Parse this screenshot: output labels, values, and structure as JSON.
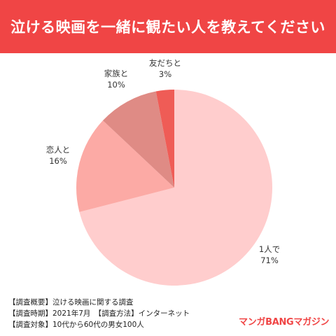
{
  "header": {
    "title": "泣ける映画を一緒に観たい人を教えてください",
    "background": "#f04545"
  },
  "chart_data": {
    "type": "pie",
    "title": "",
    "categories": [
      "1人で",
      "恋人と",
      "家族と",
      "友だちと"
    ],
    "values": [
      71,
      16,
      10,
      3
    ],
    "units": "%",
    "labels": [
      "71%",
      "16%",
      "10%",
      "3%"
    ],
    "colors": [
      "#ffcdcd",
      "#fcaaa5",
      "#df8b85",
      "#ef5c56"
    ],
    "start_angle": "12 o'clock",
    "direction": "clockwise",
    "legend": "none",
    "data_labels": "outside"
  },
  "survey": {
    "rows": [
      {
        "key": "【調査概要】",
        "value": "泣ける映画に関する調査"
      },
      {
        "key": "【調査時期】",
        "value": "2021年7月　【調査方法】インターネット"
      },
      {
        "key": "【調査対象】",
        "value": "10代から60代の男女100人"
      }
    ]
  },
  "brand": {
    "name": "マンガBANGマガジン",
    "color": "#f04545"
  }
}
